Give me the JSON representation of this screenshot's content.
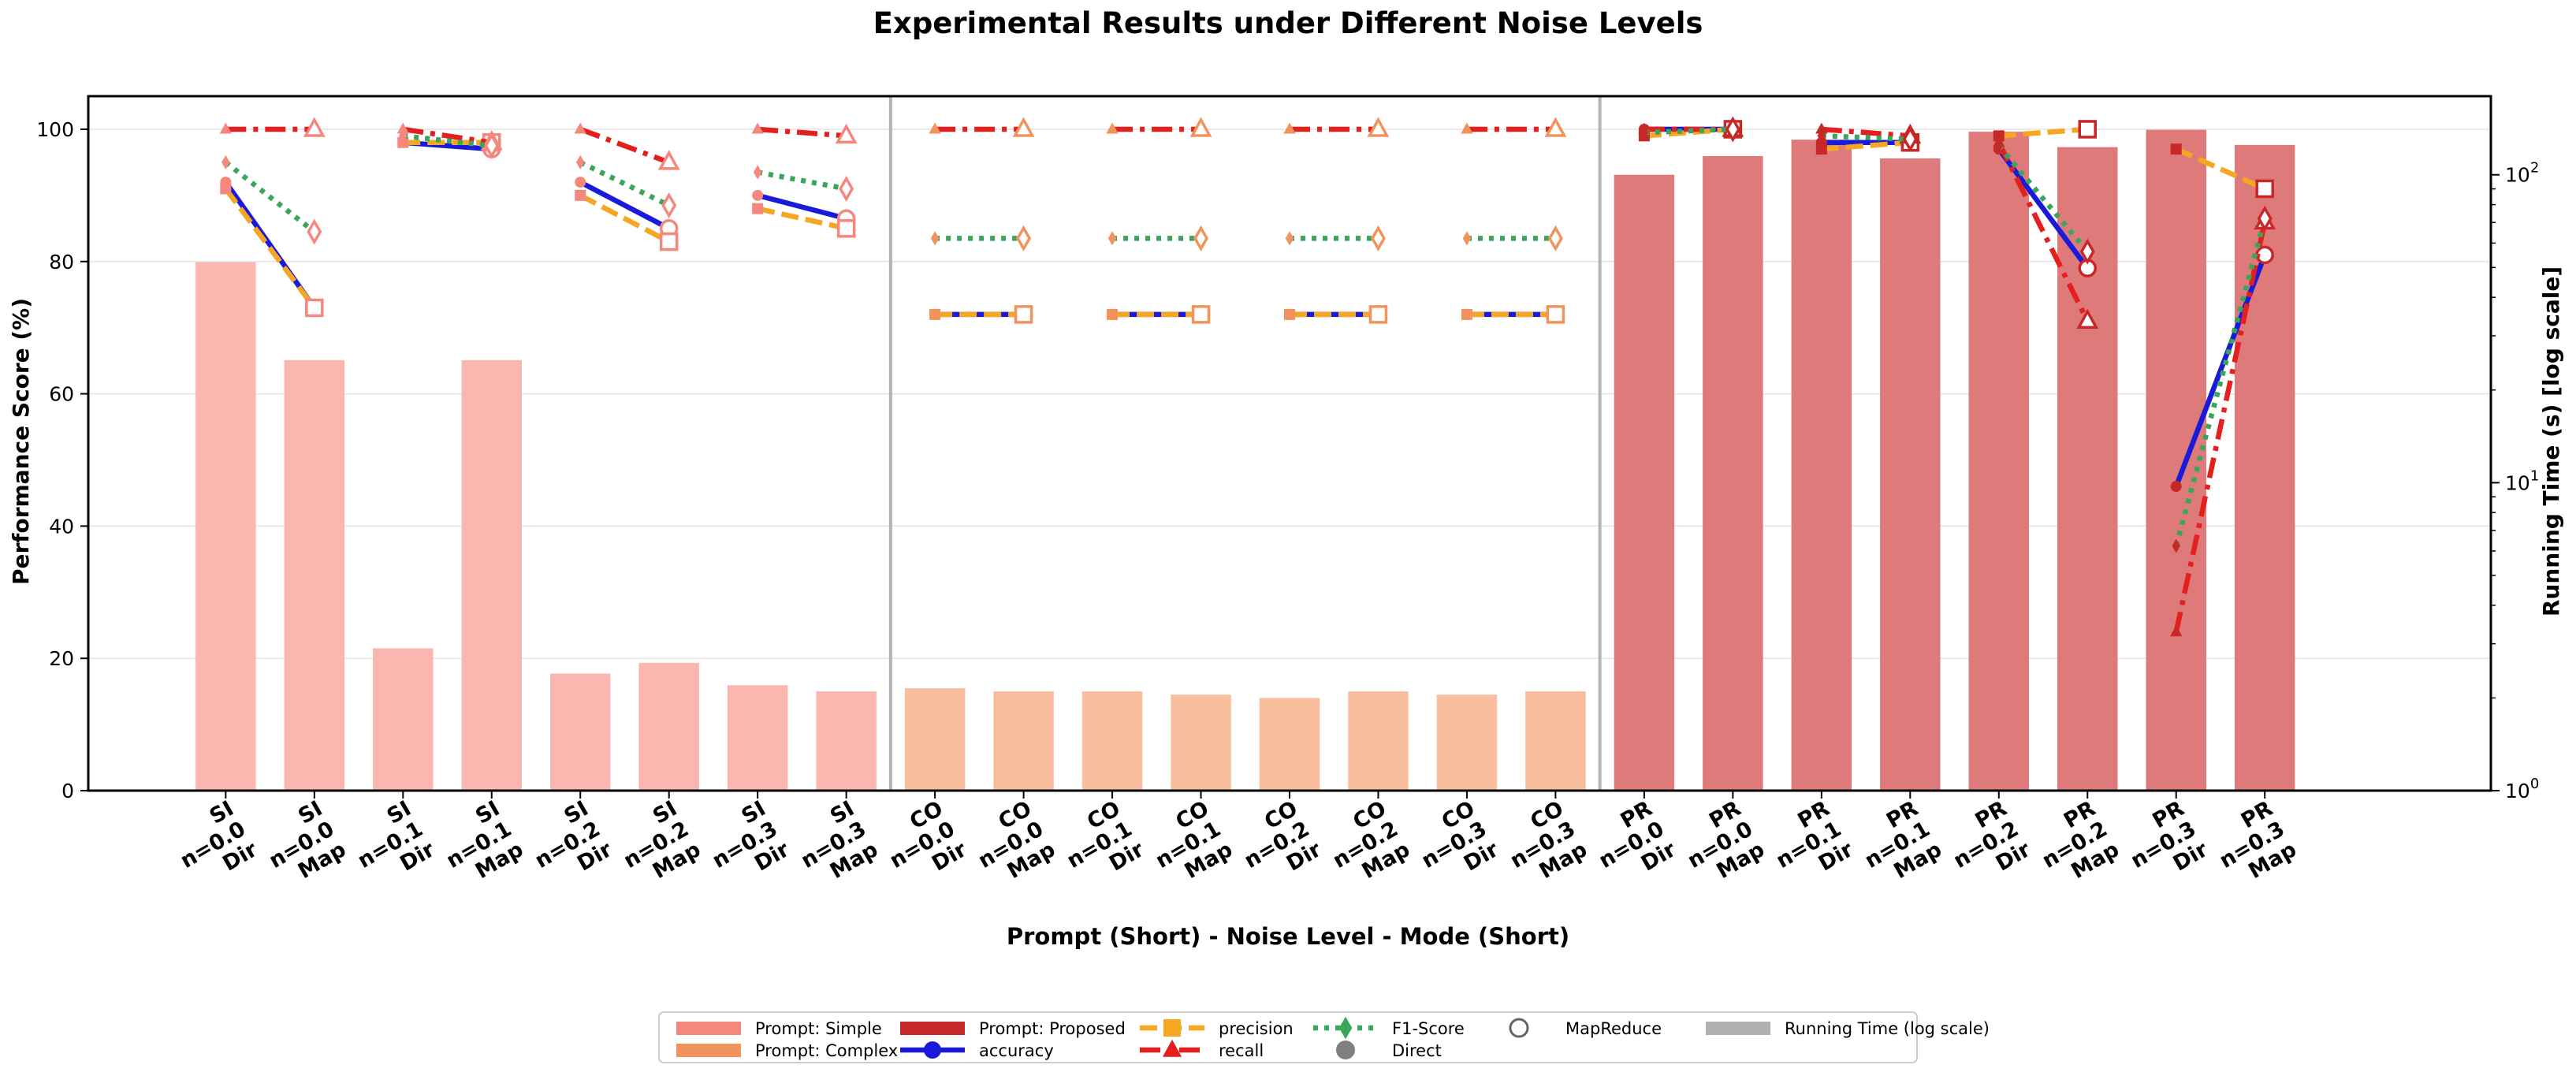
{
  "chart_data": {
    "type": "bar",
    "title": "Experimental Results under Different Noise Levels",
    "xlabel": "Prompt (Short) - Noise Level - Mode (Short)",
    "ylabel": "Performance Score (%)",
    "y2label": "Running Time (s) [log scale]",
    "ylim": [
      0,
      105
    ],
    "y_ticks": [
      "0",
      "20",
      "40",
      "60",
      "80",
      "100"
    ],
    "y2_ticks": [
      {
        "value": 1,
        "base": "10",
        "exp": "0"
      },
      {
        "value": 10,
        "base": "10",
        "exp": "1"
      },
      {
        "value": 100,
        "base": "10",
        "exp": "2"
      }
    ],
    "y2lim": [
      1,
      180
    ],
    "grid": true,
    "legend_position": "bottom-center",
    "categories": [
      {
        "prompt": "SI",
        "noise": "n=0.0",
        "mode": "Dir"
      },
      {
        "prompt": "SI",
        "noise": "n=0.0",
        "mode": "Map"
      },
      {
        "prompt": "SI",
        "noise": "n=0.1",
        "mode": "Dir"
      },
      {
        "prompt": "SI",
        "noise": "n=0.1",
        "mode": "Map"
      },
      {
        "prompt": "SI",
        "noise": "n=0.2",
        "mode": "Dir"
      },
      {
        "prompt": "SI",
        "noise": "n=0.2",
        "mode": "Map"
      },
      {
        "prompt": "SI",
        "noise": "n=0.3",
        "mode": "Dir"
      },
      {
        "prompt": "SI",
        "noise": "n=0.3",
        "mode": "Map"
      },
      {
        "prompt": "CO",
        "noise": "n=0.0",
        "mode": "Dir"
      },
      {
        "prompt": "CO",
        "noise": "n=0.0",
        "mode": "Map"
      },
      {
        "prompt": "CO",
        "noise": "n=0.1",
        "mode": "Dir"
      },
      {
        "prompt": "CO",
        "noise": "n=0.1",
        "mode": "Map"
      },
      {
        "prompt": "CO",
        "noise": "n=0.2",
        "mode": "Dir"
      },
      {
        "prompt": "CO",
        "noise": "n=0.2",
        "mode": "Map"
      },
      {
        "prompt": "CO",
        "noise": "n=0.3",
        "mode": "Dir"
      },
      {
        "prompt": "CO",
        "noise": "n=0.3",
        "mode": "Map"
      },
      {
        "prompt": "PR",
        "noise": "n=0.0",
        "mode": "Dir"
      },
      {
        "prompt": "PR",
        "noise": "n=0.0",
        "mode": "Map"
      },
      {
        "prompt": "PR",
        "noise": "n=0.1",
        "mode": "Dir"
      },
      {
        "prompt": "PR",
        "noise": "n=0.1",
        "mode": "Map"
      },
      {
        "prompt": "PR",
        "noise": "n=0.2",
        "mode": "Dir"
      },
      {
        "prompt": "PR",
        "noise": "n=0.2",
        "mode": "Map"
      },
      {
        "prompt": "PR",
        "noise": "n=0.3",
        "mode": "Dir"
      },
      {
        "prompt": "PR",
        "noise": "n=0.3",
        "mode": "Map"
      }
    ],
    "running_time_s": [
      52,
      25,
      2.9,
      25,
      2.4,
      2.6,
      2.2,
      2.1,
      2.15,
      2.1,
      2.1,
      2.05,
      2.0,
      2.1,
      2.05,
      2.1,
      100,
      115,
      130,
      113,
      138,
      123,
      140,
      125
    ],
    "bar_colors": {
      "SI": "#FBB7AF",
      "CO": "#F8BE9D",
      "PR": "#DF7A7A"
    },
    "metric_series": [
      {
        "name": "accuracy",
        "color": "#1A1ADB",
        "dash": "solid",
        "values": [
          92,
          73,
          98,
          97,
          92,
          85,
          90,
          86.5,
          72,
          72,
          72,
          72,
          72,
          72,
          72,
          72,
          100,
          100,
          98,
          98,
          97,
          79,
          46,
          81
        ]
      },
      {
        "name": "precision",
        "color": "#F5A623",
        "dash": "dashed",
        "values": [
          91,
          73,
          98,
          98,
          90,
          83,
          88,
          85,
          72,
          72,
          72,
          72,
          72,
          72,
          72,
          72,
          99,
          100,
          97,
          98,
          99,
          100,
          97,
          91
        ]
      },
      {
        "name": "recall",
        "color": "#E3201E",
        "dash": "dashdot",
        "values": [
          100,
          100,
          100,
          98,
          100,
          95,
          100,
          99,
          100,
          100,
          100,
          100,
          100,
          100,
          100,
          100,
          100,
          100,
          100,
          99,
          98,
          71,
          24,
          86
        ]
      },
      {
        "name": "F1-Score",
        "color": "#3BA55C",
        "dash": "dotted",
        "values": [
          95,
          84.5,
          99,
          97.5,
          95,
          88.5,
          93.5,
          91,
          83.5,
          83.5,
          83.5,
          83.5,
          83.5,
          83.5,
          83.5,
          83.5,
          99.5,
          100,
          99,
          98.5,
          97.5,
          81.5,
          37,
          86.5
        ]
      }
    ],
    "legend": [
      {
        "label": "Prompt: Simple",
        "kind": "patch",
        "color": "#F5877D"
      },
      {
        "label": "Prompt: Complex",
        "kind": "patch",
        "color": "#F2935E"
      },
      {
        "label": "Prompt: Proposed",
        "kind": "patch",
        "color": "#C62828"
      },
      {
        "label": "accuracy",
        "kind": "line",
        "color": "#1A1ADB",
        "dash": "solid",
        "marker": "circle"
      },
      {
        "label": "precision",
        "kind": "line",
        "color": "#F5A623",
        "dash": "dashed",
        "marker": "square"
      },
      {
        "label": "recall",
        "kind": "line",
        "color": "#E3201E",
        "dash": "dashdot",
        "marker": "triangle"
      },
      {
        "label": "F1-Score",
        "kind": "line",
        "color": "#3BA55C",
        "dash": "dotted",
        "marker": "diamond"
      },
      {
        "label": "MapReduce",
        "kind": "hollow-circle",
        "color": "#666666"
      },
      {
        "label": "Direct",
        "kind": "filled-circle",
        "color": "#808080"
      },
      {
        "label": "Running Time (log scale)",
        "kind": "patch",
        "color": "#B0B0B0"
      }
    ]
  }
}
